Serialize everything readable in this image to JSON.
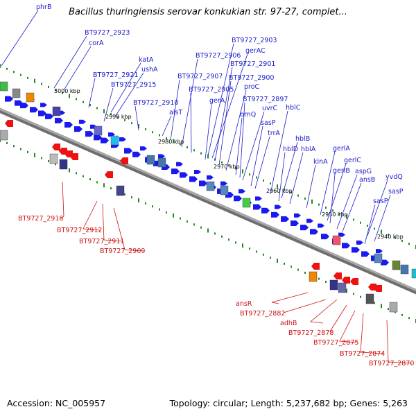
{
  "title": "Bacillus thuringiensis serovar konkukian str. 97-27, complet...",
  "footer": {
    "accession": "Accession: NC_005957",
    "summary": "Topology: circular; Length: 5,237,682 bp; Genes: 5,263"
  },
  "colors": {
    "forward_label": "#1a1acc",
    "reverse_label": "#cc1111",
    "forward_feature": "#1a1af0",
    "reverse_feature": "#ee1111",
    "backbone": "#8c8c8c",
    "tick": "#228822"
  },
  "scale": {
    "ticks": [
      "3000 kbp",
      "2990 kbp",
      "2980 kbp",
      "2970 kbp",
      "2960 kbp",
      "2950 kbp",
      "2940 kbp"
    ]
  },
  "forward_labels": [
    "phrB",
    "BT9727_2923",
    "corA",
    "katA",
    "ushA",
    "BT9727_2921",
    "BT9727_2915",
    "BT9727_2910",
    "alsT",
    "BT9727_2907",
    "BT9727_2906",
    "BT9727_2905",
    "BT9727_2903",
    "gerAC",
    "BT9727_2901",
    "BT9727_2900",
    "gerA",
    "proC",
    "brnQ",
    "BT9727_2897",
    "uvrC",
    "sasP",
    "trrA",
    "hblC",
    "hblB",
    "hblD",
    "hblA",
    "kinA",
    "gerlA",
    "gerlC",
    "gerlB",
    "aspG",
    "ansB",
    "yvdQ",
    "sasP",
    "sasP"
  ],
  "reverse_labels": [
    "BT9727_2916",
    "BT9727_2912",
    "BT9727_2911",
    "BT9727_2909",
    "ansR",
    "BT9727_2882",
    "adhB",
    "BT9727_2878",
    "BT9727_2875",
    "BT9727_2874",
    "BT9727_2870"
  ]
}
